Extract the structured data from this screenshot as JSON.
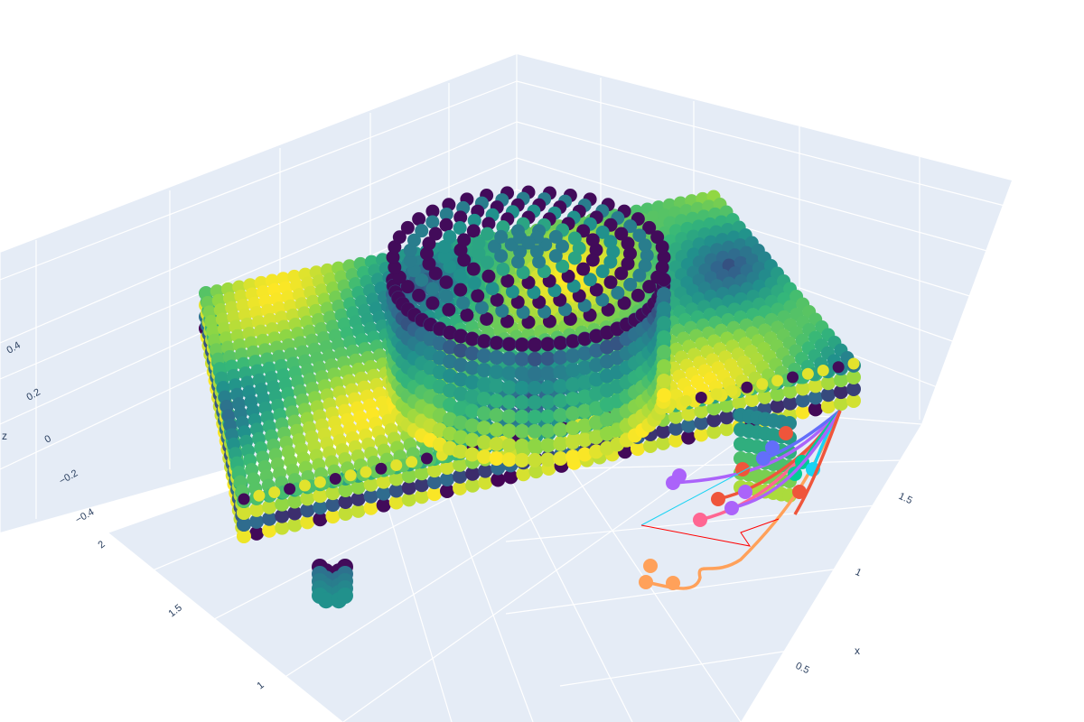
{
  "chart_data": {
    "type": "scatter3d",
    "background_color": "#e5ecf6",
    "grid_color": "#ffffff",
    "colorscale": "viridis",
    "colorscale_stops": [
      "#440154",
      "#31688e",
      "#21918c",
      "#35b779",
      "#90d743",
      "#fde725"
    ],
    "axes": {
      "x": {
        "title": "x",
        "ticks": [
          "0.5",
          "1",
          "1.5"
        ]
      },
      "y": {
        "title": "",
        "ticks": [
          "1",
          "1.5",
          "2"
        ]
      },
      "z": {
        "title": "z",
        "ticks": [
          "0.4",
          "0.2",
          "0",
          "−0.2",
          "−0.4"
        ]
      }
    },
    "grid": true,
    "legend": "none",
    "objects": [
      {
        "kind": "voxel-point-cloud",
        "description": "platform with raised dome",
        "marker": "sphere",
        "color_by": "z"
      },
      {
        "kind": "voxel-point-cloud",
        "description": "small cylinder",
        "marker": "sphere",
        "color_by": "z"
      },
      {
        "kind": "voxel-point-cloud",
        "description": "support leg",
        "marker": "sphere",
        "color_by": "z"
      }
    ],
    "trajectory_colors": [
      "#636efa",
      "#ef553b",
      "#00cc96",
      "#ab63fa",
      "#ffa15a",
      "#19d3f3",
      "#ff6692"
    ]
  }
}
